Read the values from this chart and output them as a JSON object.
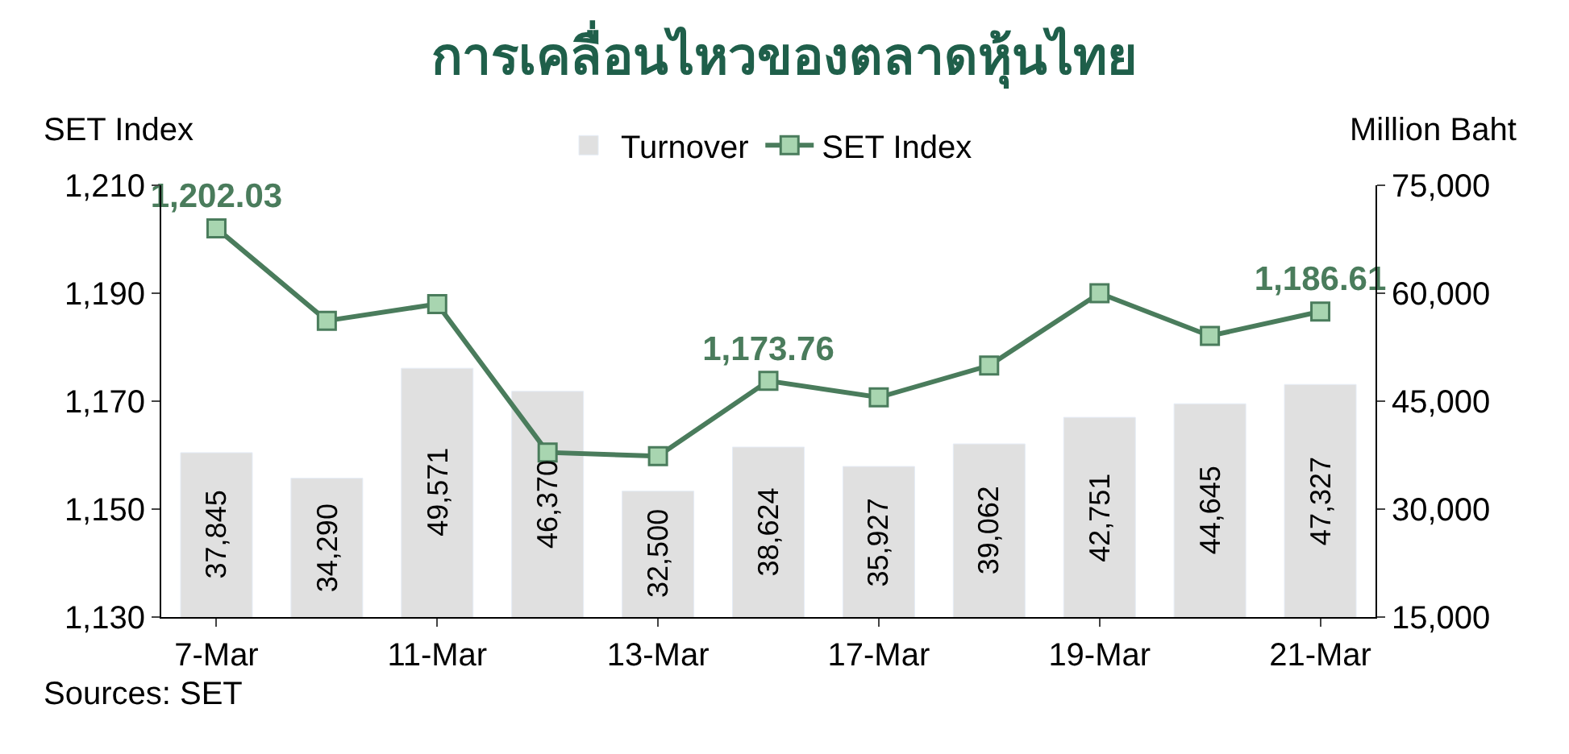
{
  "chart_data": {
    "type": "bar",
    "title": "การเคลื่อนไหวของตลาดหุ้นไทย",
    "ylabel": "SET Index",
    "y2label": "Million Baht",
    "categories": [
      "7-Mar",
      null,
      "11-Mar",
      null,
      "13-Mar",
      null,
      "17-Mar",
      null,
      "19-Mar",
      null,
      "21-Mar"
    ],
    "series": [
      {
        "name": "Turnover",
        "axis": "y2",
        "color": "#e0e0e0",
        "values": [
          37845,
          34290,
          49571,
          46370,
          32500,
          38624,
          35927,
          39062,
          42751,
          44645,
          47327
        ],
        "value_labels": [
          "37,845",
          "34,290",
          "49,571",
          "46,370",
          "32,500",
          "38,624",
          "35,927",
          "39,062",
          "42,751",
          "44,645",
          "47,327"
        ]
      },
      {
        "name": "SET Index",
        "type": "line",
        "axis": "y",
        "color": "#4a7c5c",
        "marker": "square",
        "values": [
          1202.03,
          1184.9,
          1188.0,
          1160.5,
          1159.8,
          1173.76,
          1170.7,
          1176.6,
          1190.0,
          1182.1,
          1186.61
        ],
        "value_labels": [
          "1,202.03",
          null,
          null,
          null,
          null,
          "1,173.76",
          null,
          null,
          null,
          null,
          "1,186.61"
        ]
      }
    ],
    "ylim": [
      1130,
      1210
    ],
    "yticks": [
      {
        "value": 1130,
        "label": "1,130"
      },
      {
        "value": 1150,
        "label": "1,150"
      },
      {
        "value": 1170,
        "label": "1,170"
      },
      {
        "value": 1190,
        "label": "1,190"
      },
      {
        "value": 1210,
        "label": "1,210"
      }
    ],
    "y2lim": [
      15000,
      75000
    ],
    "y2ticks": [
      {
        "value": 15000,
        "label": "15,000"
      },
      {
        "value": 30000,
        "label": "30,000"
      },
      {
        "value": 45000,
        "label": "45,000"
      },
      {
        "value": 60000,
        "label": "60,000"
      },
      {
        "value": 75000,
        "label": "75,000"
      }
    ],
    "legend": "top",
    "annotations": [
      "Sources: SET"
    ]
  }
}
